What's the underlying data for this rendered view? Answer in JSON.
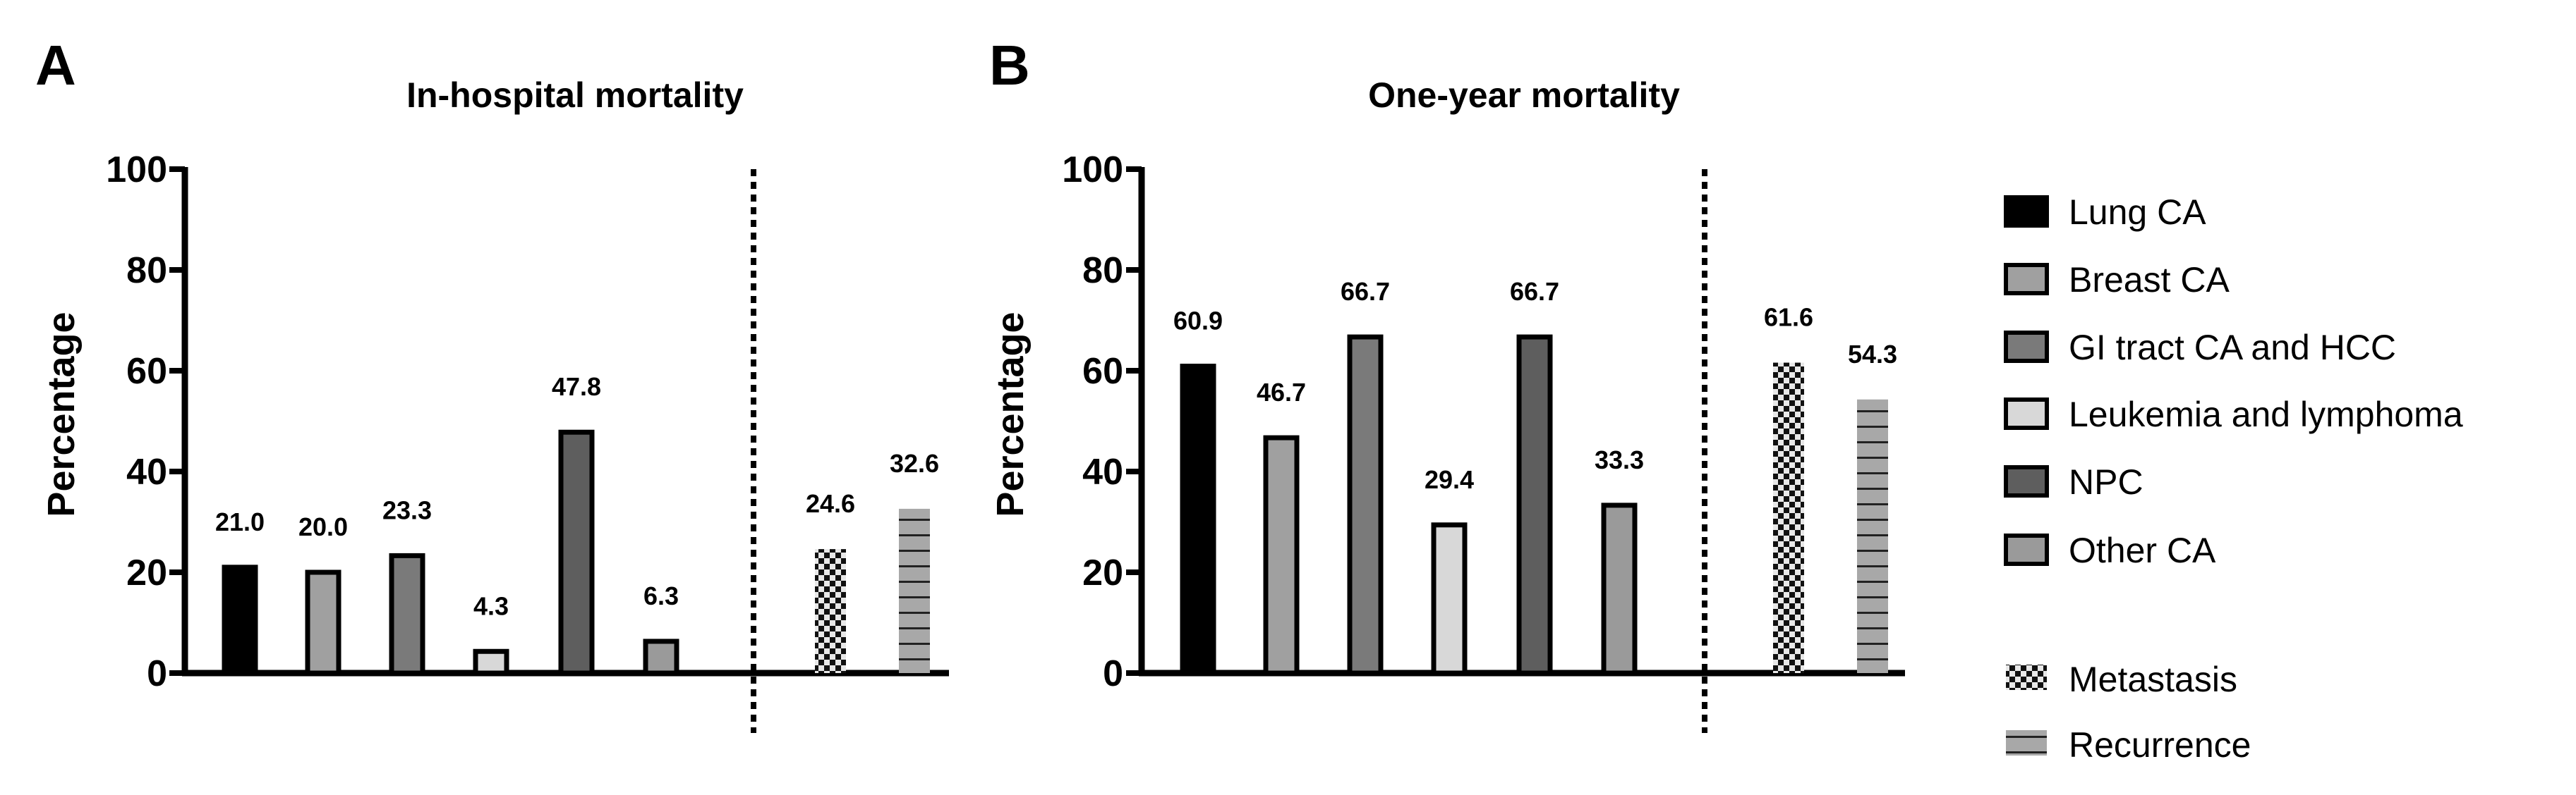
{
  "chart_data": [
    {
      "panel": "A",
      "type": "bar",
      "title": "In-hospital mortality",
      "ylabel": "Percentage",
      "xlabel": "",
      "ylim": [
        0,
        100
      ],
      "yticks": [
        "0",
        "20",
        "40",
        "60",
        "80",
        "100"
      ],
      "categories": [
        "Lung CA",
        "Breast CA",
        "GI tract CA and HCC",
        "Leukemia and lymphoma",
        "NPC",
        "Other CA",
        "Metastasis",
        "Recurrence"
      ],
      "values": [
        21.0,
        20.0,
        23.3,
        4.3,
        47.8,
        6.3,
        24.6,
        32.6
      ],
      "value_labels": [
        "21.0",
        "20.0",
        "23.3",
        "4.3",
        "47.8",
        "6.3",
        "24.6",
        "32.6"
      ]
    },
    {
      "panel": "B",
      "type": "bar",
      "title": "One-year mortality",
      "ylabel": "Percentage",
      "xlabel": "",
      "ylim": [
        0,
        100
      ],
      "yticks": [
        "0",
        "20",
        "40",
        "60",
        "80",
        "100"
      ],
      "categories": [
        "Lung CA",
        "Breast CA",
        "GI tract CA and HCC",
        "Leukemia and lymphoma",
        "NPC",
        "Other CA",
        "Metastasis",
        "Recurrence"
      ],
      "values": [
        60.9,
        46.7,
        66.7,
        29.4,
        66.7,
        33.3,
        61.6,
        54.3
      ],
      "value_labels": [
        "60.9",
        "46.7",
        "66.7",
        "29.4",
        "66.7",
        "33.3",
        "61.6",
        "54.3"
      ]
    }
  ],
  "legend": [
    {
      "label": "Lung CA",
      "fill": "#000000",
      "pattern": "solid"
    },
    {
      "label": "Breast CA",
      "fill": "#a0a0a0",
      "pattern": "solid"
    },
    {
      "label": "GI tract CA and HCC",
      "fill": "#7a7a7a",
      "pattern": "solid"
    },
    {
      "label": "Leukemia and lymphoma",
      "fill": "#d8d8d8",
      "pattern": "solid"
    },
    {
      "label": "NPC",
      "fill": "#5e5e5e",
      "pattern": "solid"
    },
    {
      "label": "Other CA",
      "fill": "#9a9a9a",
      "pattern": "solid"
    },
    {
      "label": "Metastasis",
      "fill": "#e8e8e8",
      "pattern": "checker"
    },
    {
      "label": "Recurrence",
      "fill": "#a8a8a8",
      "pattern": "hlines"
    }
  ]
}
